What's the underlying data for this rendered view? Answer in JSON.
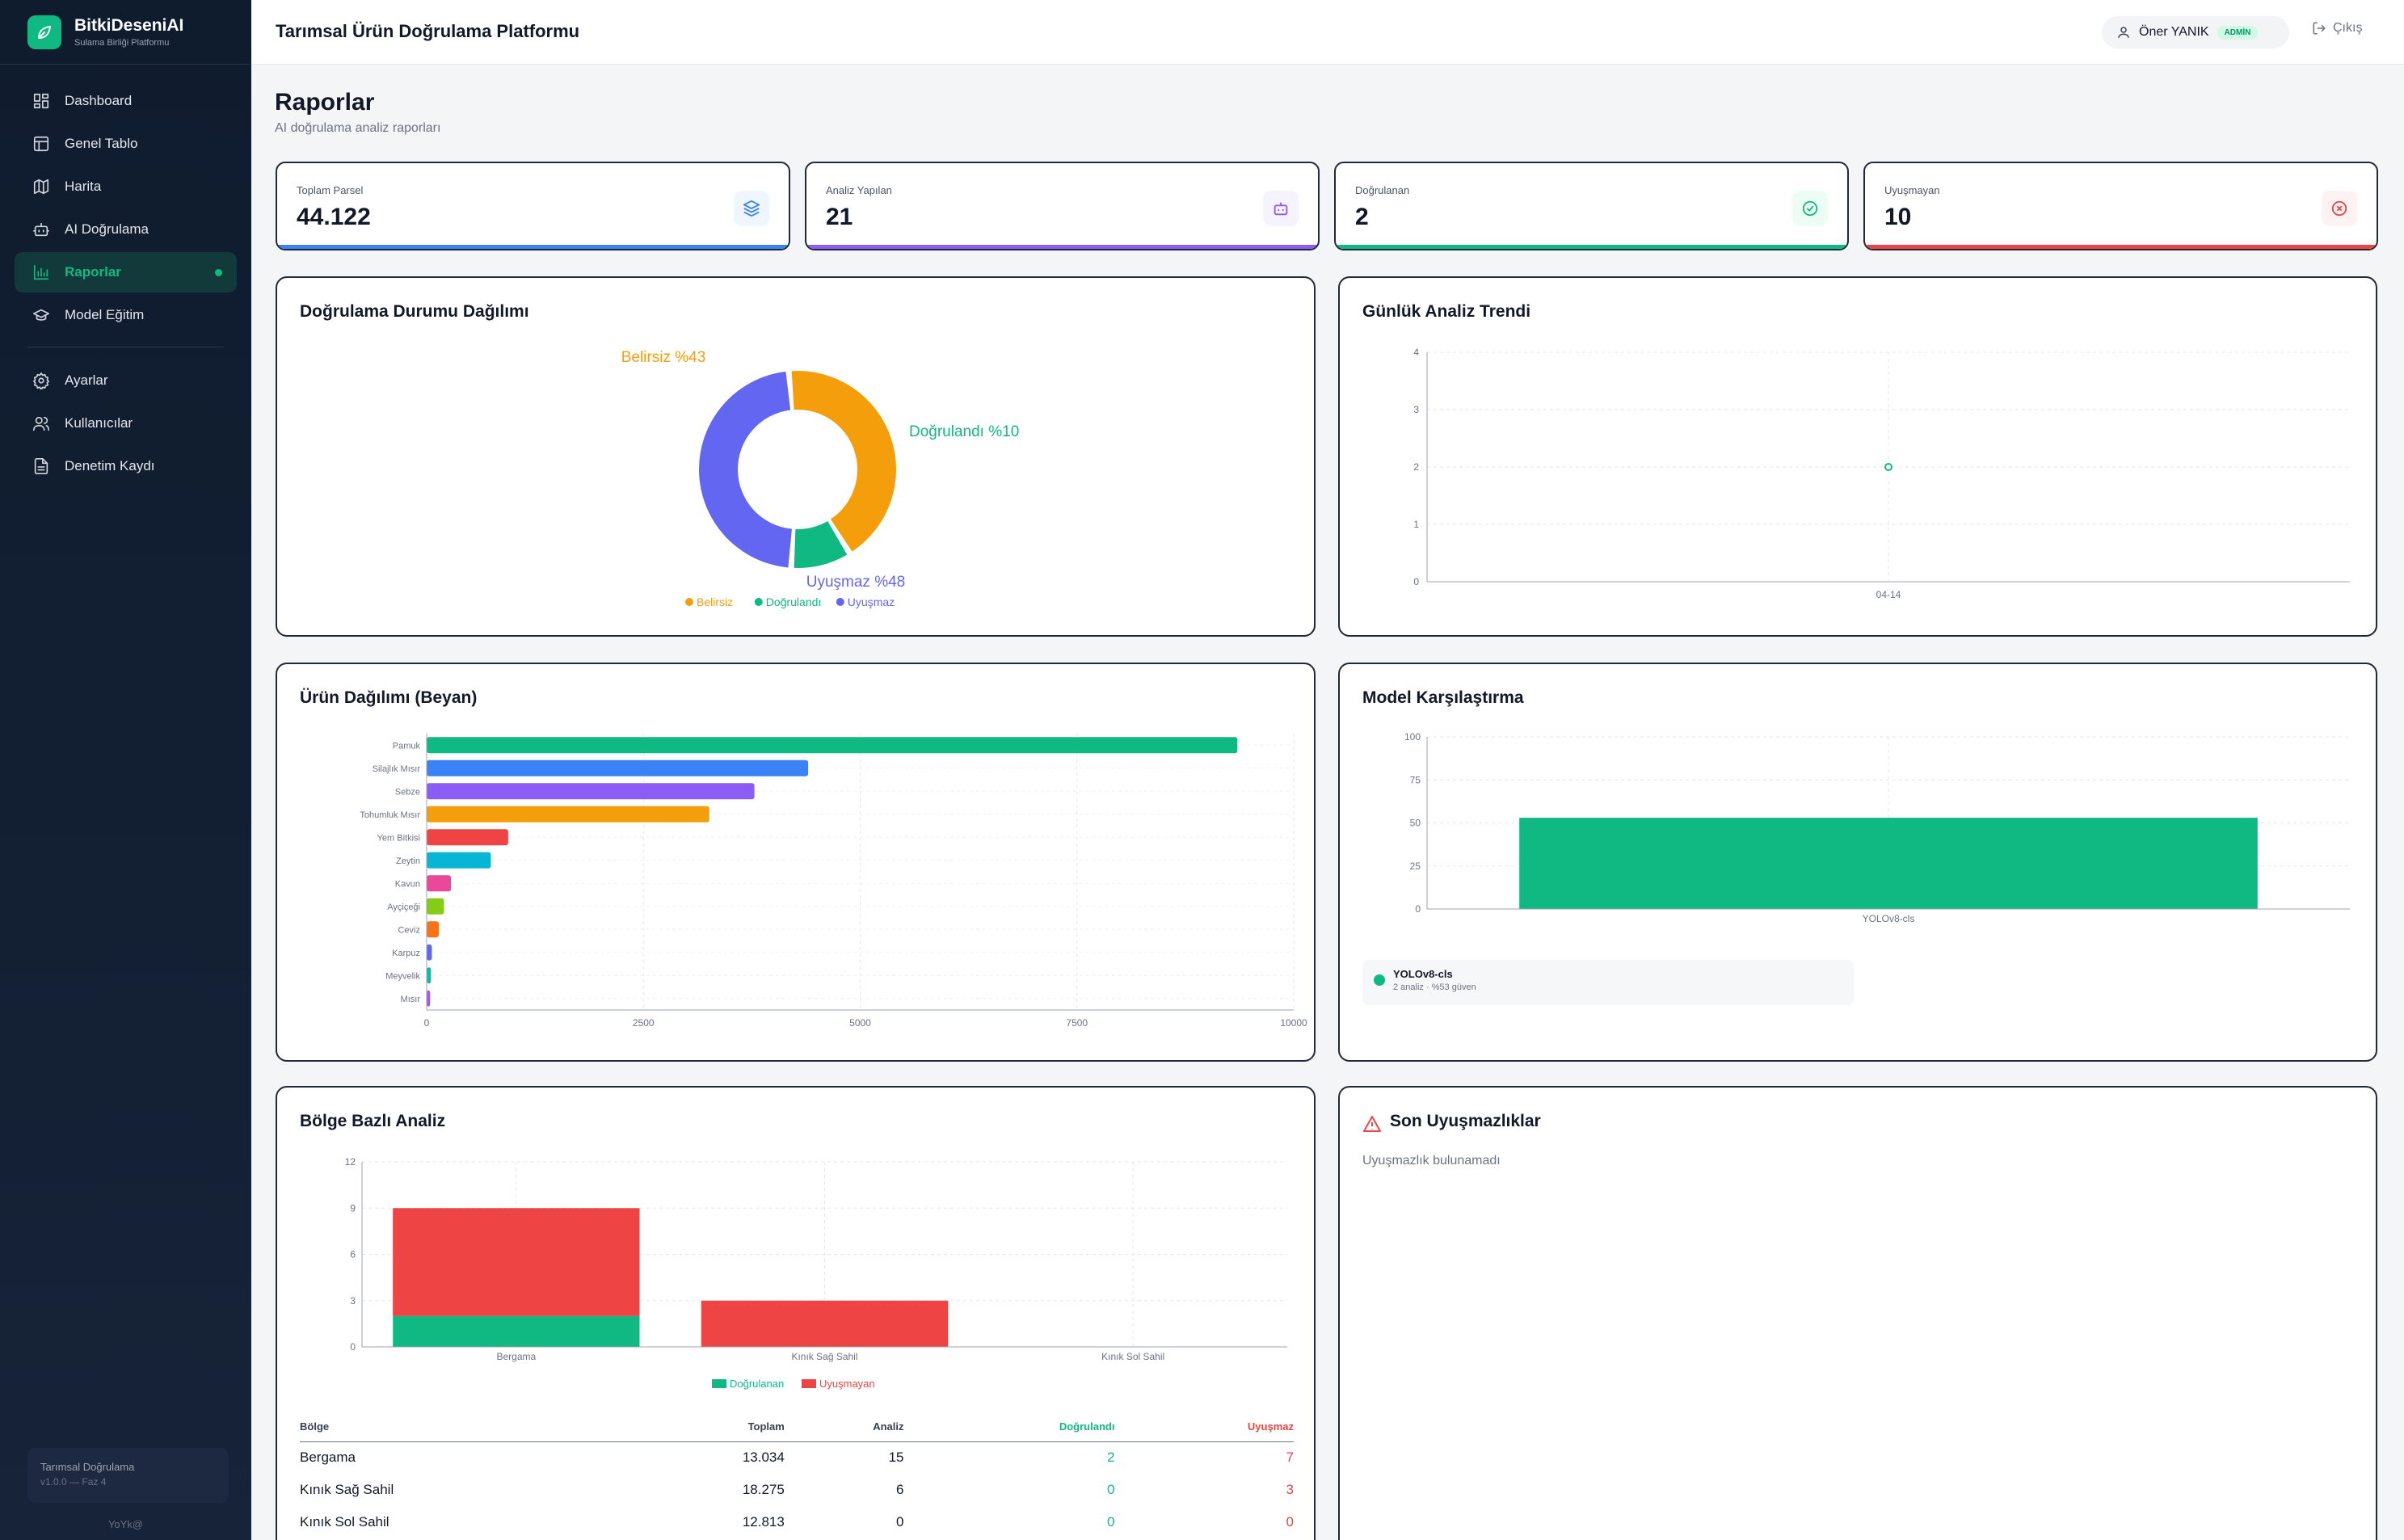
{
  "app": {
    "name": "BitkiDeseniAI",
    "subtitle": "Sulama Birliği Platformu",
    "footer_title": "Tarımsal Doğrulama",
    "footer_version": "v1.0.0 — Faz 4",
    "footer_user": "YoYk@"
  },
  "nav": [
    {
      "label": "Dashboard",
      "icon": "dashboard-icon"
    },
    {
      "label": "Genel Tablo",
      "icon": "table-icon"
    },
    {
      "label": "Harita",
      "icon": "map-icon"
    },
    {
      "label": "AI Doğrulama",
      "icon": "robot-icon"
    },
    {
      "label": "Raporlar",
      "icon": "bar-chart-icon",
      "active": true
    },
    {
      "label": "Model Eğitim",
      "icon": "graduation-cap-icon"
    }
  ],
  "nav2": [
    {
      "label": "Ayarlar",
      "icon": "gear-icon"
    },
    {
      "label": "Kullanıcılar",
      "icon": "users-icon"
    },
    {
      "label": "Denetim Kaydı",
      "icon": "file-icon"
    }
  ],
  "header": {
    "title": "Tarımsal Ürün Doğrulama Platformu",
    "user": "Öner YANIK",
    "role": "ADMİN",
    "logout": "Çıkış"
  },
  "page": {
    "title": "Raporlar",
    "subtitle": "AI doğrulama analiz raporları"
  },
  "stats": [
    {
      "label": "Toplam Parsel",
      "value": "44.122",
      "color": "#3b82f6",
      "icon": "layers-icon"
    },
    {
      "label": "Analiz Yapılan",
      "value": "21",
      "color": "#8b5cf6",
      "icon": "robot-icon"
    },
    {
      "label": "Doğrulanan",
      "value": "2",
      "color": "#10b981",
      "icon": "check-circle-icon"
    },
    {
      "label": "Uyuşmayan",
      "value": "10",
      "color": "#ef4444",
      "icon": "x-circle-icon"
    }
  ],
  "cards": {
    "donut": "Doğrulama Durumu Dağılımı",
    "trend": "Günlük Analiz Trendi",
    "products": "Ürün Dağılımı (Beyan)",
    "models": "Model Karşılaştırma",
    "regions": "Bölge Bazlı Analiz",
    "conflicts": "Son Uyuşmazlıklar",
    "conflicts_empty": "Uyuşmazlık bulunamadı"
  },
  "chart_data": [
    {
      "type": "pie",
      "id": "donut",
      "slices": [
        {
          "label": "Belirsiz",
          "value": 43,
          "text": "Belirsiz %43",
          "color": "#f59e0b"
        },
        {
          "label": "Doğrulandı",
          "value": 10,
          "text": "Doğrulandı %10",
          "color": "#10b981"
        },
        {
          "label": "Uyuşmaz",
          "value": 48,
          "text": "Uyuşmaz %48",
          "color": "#6366f1"
        }
      ]
    },
    {
      "type": "scatter",
      "id": "trend",
      "x": [
        "04-14"
      ],
      "y": [
        2
      ],
      "ylim": [
        0,
        4
      ],
      "yticks": [
        0,
        1,
        2,
        3,
        4
      ],
      "color": "#10b981"
    },
    {
      "type": "bar",
      "id": "products",
      "orientation": "horizontal",
      "xlim": [
        0,
        10000
      ],
      "xticks": [
        0,
        2500,
        5000,
        7500,
        10000
      ],
      "categories": [
        "Pamuk",
        "Silajlık Mısır",
        "Sebze",
        "Tohumluk Mısır",
        "Yem Bitkisi",
        "Zeytin",
        "Kavun",
        "Ayçiçeği",
        "Ceviz",
        "Karpuz",
        "Meyvelik",
        "Mısır"
      ],
      "values": [
        9350,
        4400,
        3780,
        3260,
        940,
        740,
        280,
        200,
        140,
        60,
        50,
        40
      ],
      "colors": [
        "#10b981",
        "#3b82f6",
        "#8b5cf6",
        "#f59e0b",
        "#ef4444",
        "#06b6d4",
        "#ec4899",
        "#84cc16",
        "#f97316",
        "#6366f1",
        "#14b8a6",
        "#a855f7"
      ]
    },
    {
      "type": "bar",
      "id": "models",
      "categories": [
        "YOLOv8-cls"
      ],
      "values": [
        53
      ],
      "ylim": [
        0,
        100
      ],
      "yticks": [
        0,
        25,
        50,
        75,
        100
      ],
      "color": "#10b981",
      "items": [
        {
          "name": "YOLOv8-cls",
          "detail": "2 analiz · %53 güven"
        }
      ]
    },
    {
      "type": "bar",
      "id": "regions",
      "stacked": true,
      "categories": [
        "Bergama",
        "Kınık Sağ Sahil",
        "Kınık Sol Sahil"
      ],
      "ylim": [
        0,
        12
      ],
      "yticks": [
        0,
        3,
        6,
        9,
        12
      ],
      "series": [
        {
          "name": "Doğrulanan",
          "values": [
            2,
            0,
            0
          ],
          "color": "#10b981"
        },
        {
          "name": "Uyuşmayan",
          "values": [
            7,
            3,
            0
          ],
          "color": "#ef4444"
        }
      ]
    }
  ],
  "region_table": {
    "headers": [
      "Bölge",
      "Toplam",
      "Analiz",
      "Doğrulandı",
      "Uyuşmaz"
    ],
    "rows": [
      [
        "Bergama",
        "13.034",
        "15",
        "2",
        "7"
      ],
      [
        "Kınık Sağ Sahil",
        "18.275",
        "6",
        "0",
        "3"
      ],
      [
        "Kınık Sol Sahil",
        "12.813",
        "0",
        "0",
        "0"
      ]
    ]
  }
}
